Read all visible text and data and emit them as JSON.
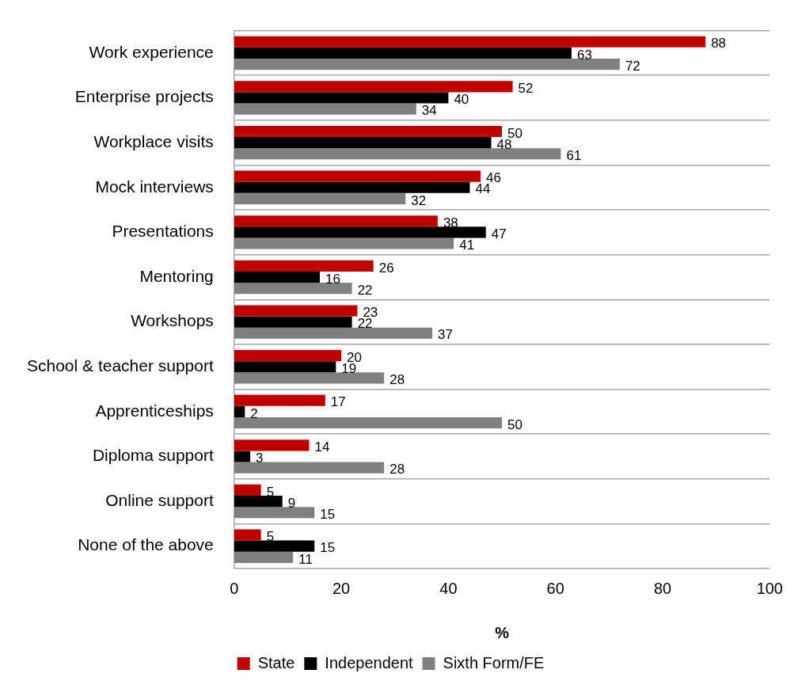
{
  "chart_data": {
    "type": "bar",
    "orientation": "horizontal",
    "xlabel": "%",
    "categories": [
      "Work experience",
      "Enterprise projects",
      "Workplace visits",
      "Mock interviews",
      "Presentations",
      "Mentoring",
      "Workshops",
      "School & teacher support",
      "Apprenticeships",
      "Diploma support",
      "Online support",
      "None of the above"
    ],
    "series": [
      {
        "name": "State",
        "color": "#c00000",
        "values": [
          88,
          52,
          50,
          46,
          38,
          26,
          23,
          20,
          17,
          14,
          5,
          5
        ]
      },
      {
        "name": "Independent",
        "color": "#000000",
        "values": [
          63,
          40,
          48,
          44,
          47,
          16,
          22,
          19,
          2,
          3,
          9,
          15
        ]
      },
      {
        "name": "Sixth Form/FE",
        "color": "#808080",
        "values": [
          72,
          34,
          61,
          32,
          41,
          22,
          37,
          28,
          50,
          28,
          15,
          11
        ]
      }
    ],
    "xlim": [
      0,
      100
    ],
    "xticks": [
      0,
      20,
      40,
      60,
      80,
      100
    ],
    "grid": "y",
    "legend": "bottom",
    "data_labels": true
  }
}
